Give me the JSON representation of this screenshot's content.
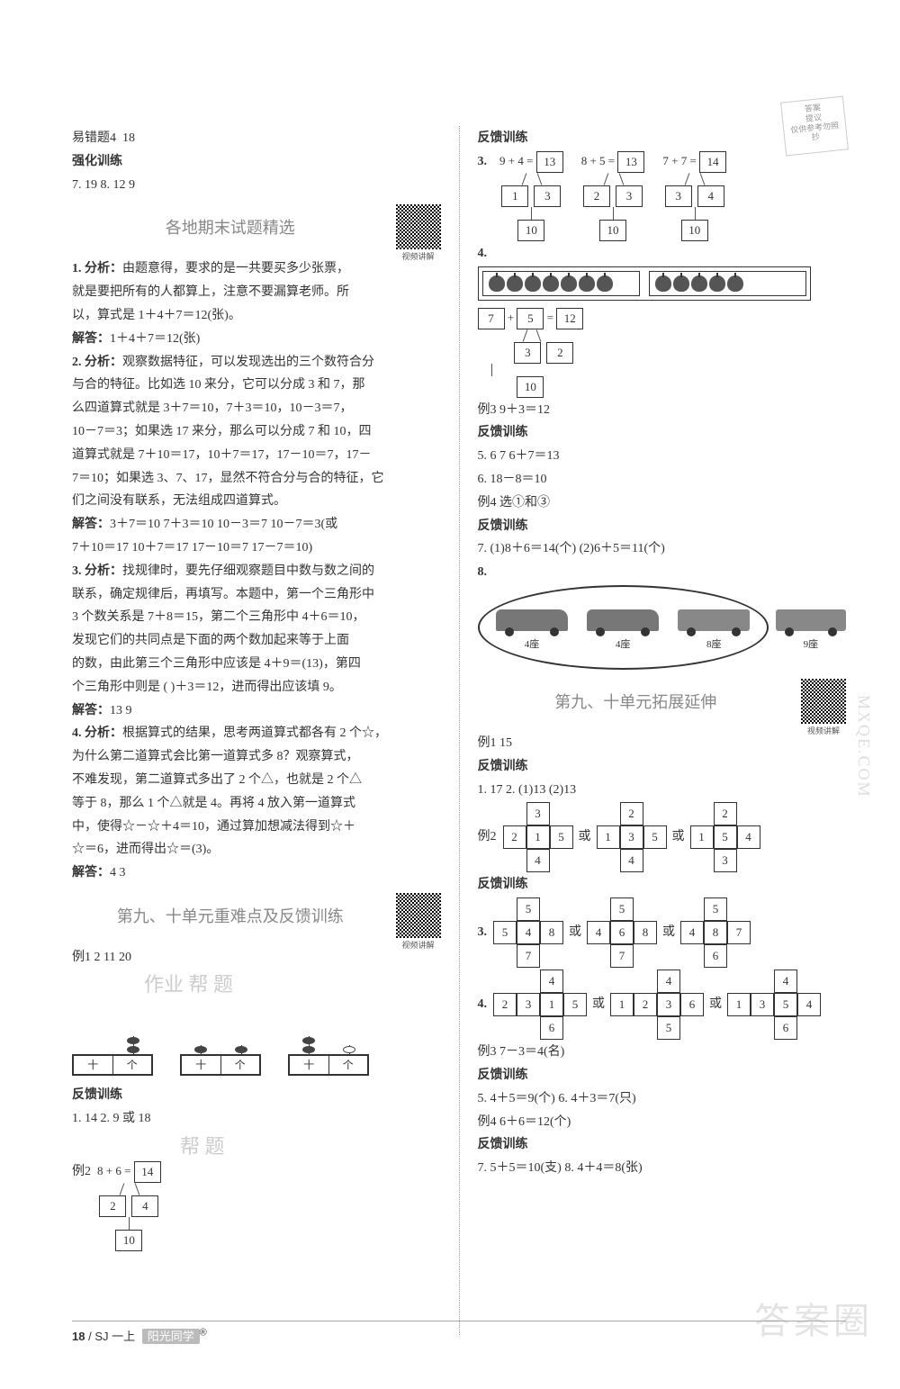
{
  "stamp": {
    "l1": "答案",
    "l2": "提议",
    "l3": "仅供参考勿照抄"
  },
  "left": {
    "err4_label": "易错题4",
    "err4_value": "18",
    "qianghua_title": "强化训练",
    "q7": "7. 19    8. 12  9",
    "sec1_title": "各地期末试题精选",
    "qr1_label": "视频讲解",
    "p1_head": "1. 分析：",
    "p1_1": "由题意得，要求的是一共要买多少张票，",
    "p1_2": "就是要把所有的人都算上，注意不要漏算老师。所",
    "p1_3": "以，算式是 1＋4＋7＝12(张)。",
    "p1_ans_label": "解答：",
    "p1_ans": "1＋4＋7＝12(张)",
    "p2_head": "2. 分析：",
    "p2_1": "观察数据特征，可以发现选出的三个数符合分",
    "p2_2": "与合的特征。比如选 10 来分，它可以分成 3 和 7，那",
    "p2_3": "么四道算式就是 3＋7＝10，7＋3＝10，10－3＝7，",
    "p2_4": "10－7＝3；如果选 17 来分，那么可以分成 7 和 10，四",
    "p2_5": "道算式就是 7＋10＝17，10＋7＝17，17－10＝7，17－",
    "p2_6": "7＝10；如果选 3、7、17，显然不符合分与合的特征，它",
    "p2_7": "们之间没有联系，无法组成四道算式。",
    "p2_ans_label": "解答：",
    "p2_ans1": "3＋7＝10  7＋3＝10  10－3＝7  10－7＝3(或",
    "p2_ans2": "7＋10＝17  10＋7＝17  17－10＝7  17－7＝10)",
    "p3_head": "3. 分析：",
    "p3_1": "找规律时，要先仔细观察题目中数与数之间的",
    "p3_2": "联系，确定规律后，再填写。本题中，第一个三角形中",
    "p3_3": "3 个数关系是 7＋8＝15，第二个三角形中 4＋6＝10，",
    "p3_4": "发现它们的共同点是下面的两个数加起来等于上面",
    "p3_5": "的数，由此第三个三角形中应该是 4＋9＝(13)，第四",
    "p3_6": "个三角形中则是 (  )＋3＝12，进而得出应该填 9。",
    "p3_ans_label": "解答：",
    "p3_ans": "13  9",
    "p4_head": "4. 分析：",
    "p4_1": "根据算式的结果，思考两道算式都各有 2 个☆，",
    "p4_2": "为什么第二道算式会比第一道算式多 8？观察算式，",
    "p4_3": "不难发现，第二道算式多出了 2 个△，也就是 2 个△",
    "p4_4": "等于 8，那么 1 个△就是 4。再将 4 放入第一道算式",
    "p4_5": "中，使得☆－☆＋4＝10，通过算加想减法得到☆＋",
    "p4_6": "☆＝6，进而得出☆＝(3)。",
    "p4_ans_label": "解答：",
    "p4_ans": "4  3",
    "sec2_title": "第九、十单元重难点及反馈训练",
    "qr2_label": "视频讲解",
    "ex1": "例1  2  11  20",
    "abacus_labels": {
      "ten": "十",
      "one": "个"
    },
    "fankui1_title": "反馈训练",
    "fk1_1": "1. 14    2. 9 或 18",
    "ex2_label": "例2",
    "ex2_expr": {
      "a": "8",
      "op": "+",
      "b": "6",
      "eq": "=",
      "r": "14",
      "s1": "2",
      "s2": "4",
      "d": "10"
    },
    "ghost1": "作业 帮 题",
    "ghost2": "帮 题"
  },
  "right": {
    "fk_title1": "反馈训练",
    "q3": {
      "label": "3.",
      "rows": [
        {
          "a": "9",
          "op": "+",
          "b": "4",
          "eq": "=",
          "r": "13",
          "s1": "1",
          "s2": "3",
          "d": "10"
        },
        {
          "a": "8",
          "op": "+",
          "b": "5",
          "eq": "=",
          "r": "13",
          "s1": "2",
          "s2": "3",
          "d": "10"
        },
        {
          "a": "7",
          "op": "+",
          "b": "7",
          "eq": "=",
          "r": "14",
          "s1": "3",
          "s2": "4",
          "d": "10"
        }
      ]
    },
    "q4_label": "4.",
    "apples": {
      "group1": 7,
      "group2": 5
    },
    "q4_split": {
      "a": "7",
      "op": "+",
      "b": "5",
      "eq": "=",
      "r": "12",
      "s1": "3",
      "s2": "2",
      "d": "10"
    },
    "ex3": "例3  9＋3＝12",
    "fk_title2": "反馈训练",
    "r5": "5. 6  7  6＋7＝13",
    "r6": "6. 18－8＝10",
    "ex4": "例4  选①和③",
    "fk_title3": "反馈训练",
    "r7": "7. (1)8＋6＝14(个)  (2)6＋5＝11(个)",
    "r8_label": "8.",
    "cars": [
      {
        "label": "4座",
        "type": "car"
      },
      {
        "label": "4座",
        "type": "car"
      },
      {
        "label": "8座",
        "type": "bus"
      }
    ],
    "car_out": {
      "label": "9座",
      "type": "bus"
    },
    "sec3_title": "第九、十单元拓展延伸",
    "qr3_label": "视频讲解",
    "e1": "例1  15",
    "fk_title4": "反馈训练",
    "rr1": "1. 17    2. (1)13  (2)13",
    "e2_label": "例2",
    "cross1": [
      {
        "t": "3",
        "l": "2",
        "c": "1",
        "r": "5",
        "b": "4"
      },
      {
        "t": "2",
        "l": "1",
        "c": "3",
        "r": "5",
        "b": "4"
      },
      {
        "t": "2",
        "l": "1",
        "c": "5",
        "r": "4",
        "b": "3"
      }
    ],
    "or_text": "或",
    "fk_title5": "反馈训练",
    "rr3_label": "3.",
    "cross2": [
      {
        "t": "5",
        "l": "5",
        "c": "4",
        "r": "8",
        "b": "7"
      },
      {
        "t": "5",
        "l": "4",
        "c": "6",
        "r": "8",
        "b": "7"
      },
      {
        "t": "5",
        "l": "4",
        "c": "8",
        "r": "7",
        "b": "6"
      }
    ],
    "rr4_label": "4.",
    "cross3": [
      {
        "t": "4",
        "l": "2",
        "c": "3",
        "r": "1",
        "b": "6",
        "r2": "5"
      },
      {
        "t": "4",
        "l": "1",
        "c": "2",
        "r": "3",
        "b": "5",
        "r2": "6"
      },
      {
        "t": "4",
        "l": "1",
        "c": "3",
        "r": "5",
        "b": "6",
        "r2": "4"
      }
    ],
    "e3": "例3  7－3＝4(名)",
    "fk_title6": "反馈训练",
    "rr5": "5. 4＋5＝9(个)    6. 4＋3＝7(只)",
    "e4": "例4  6＋6＝12(个)",
    "fk_title7": "反馈训练",
    "rr7": "7. 5＋5＝10(支)    8. 4＋4＝8(张)"
  },
  "footer": {
    "page": "18",
    "code": "/ SJ 一上",
    "brand": "阳光同学",
    "r": "®"
  },
  "wm1": "答案圈",
  "wm2": "MXQE.COM"
}
